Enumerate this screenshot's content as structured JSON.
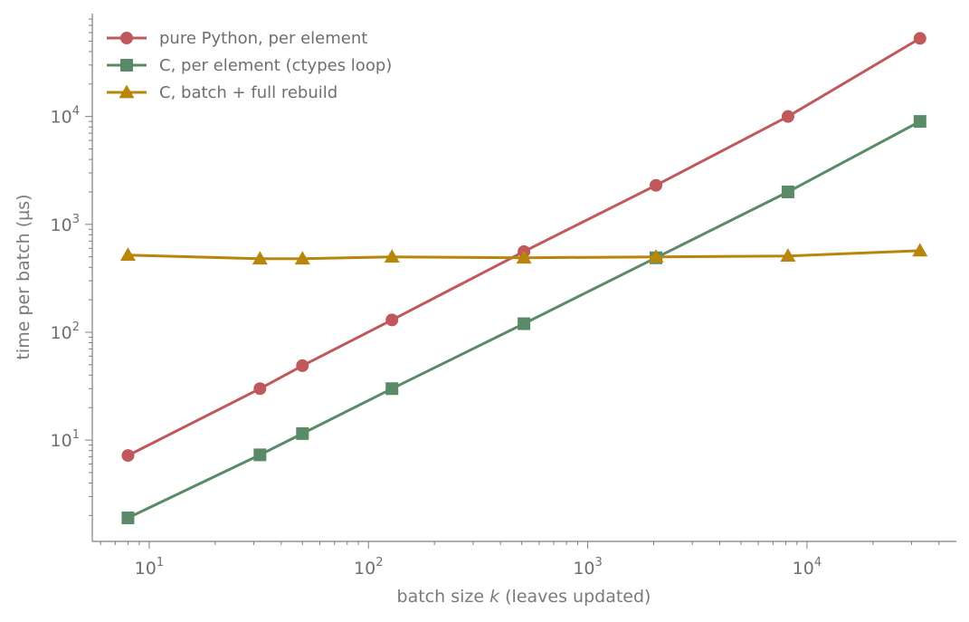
{
  "chart_data": {
    "type": "line",
    "title": "",
    "xlabel_prefix": "batch size ",
    "xlabel_var": "k",
    "xlabel_suffix": " (leaves updated)",
    "ylabel": "time per batch (µs)",
    "x_scale": "log",
    "y_scale": "log",
    "xlim": [
      5.5,
      48000
    ],
    "ylim": [
      1.15,
      90000
    ],
    "x_major_ticks": [
      10,
      100,
      1000,
      10000
    ],
    "y_major_ticks": [
      10,
      100,
      1000,
      10000
    ],
    "tick_base": "10",
    "tick_exponents": [
      "1",
      "2",
      "3",
      "4"
    ],
    "grid": false,
    "legend_position": "top-left",
    "series": [
      {
        "name": "pure Python, per element",
        "color": "#c0595b",
        "marker": "circle",
        "x": [
          8,
          32,
          50,
          128,
          512,
          2048,
          8192,
          32768
        ],
        "y": [
          7.2,
          30,
          49,
          130,
          560,
          2300,
          10000,
          53000
        ]
      },
      {
        "name": "C, per element (ctypes loop)",
        "color": "#5a8a68",
        "marker": "square",
        "x": [
          8,
          32,
          50,
          128,
          512,
          2048,
          8192,
          32768
        ],
        "y": [
          1.9,
          7.3,
          11.5,
          30,
          120,
          490,
          2000,
          9000
        ]
      },
      {
        "name": "C, batch + full rebuild",
        "color": "#b8860b",
        "marker": "triangle",
        "x": [
          8,
          32,
          50,
          128,
          512,
          2048,
          8192,
          32768
        ],
        "y": [
          520,
          480,
          480,
          500,
          490,
          500,
          510,
          570
        ]
      }
    ]
  }
}
